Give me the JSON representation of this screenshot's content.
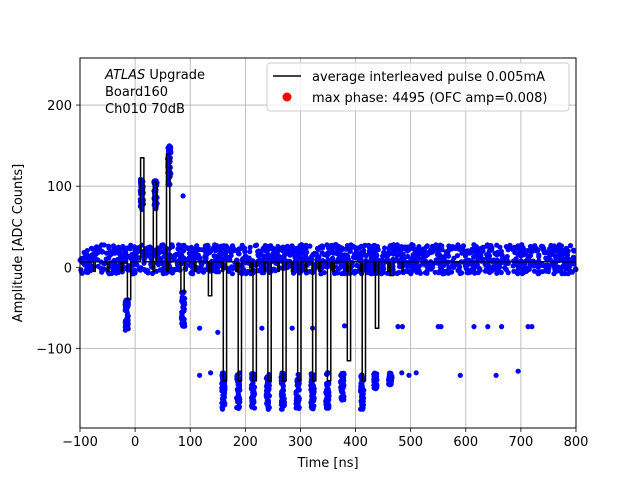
{
  "chart_data": {
    "type": "scatter",
    "xlabel": "Time [ns]",
    "ylabel": "Amplitude [ADC Counts]",
    "xlim": [
      -100,
      800
    ],
    "ylim": [
      -198,
      258
    ],
    "xticks": [
      -100,
      0,
      100,
      200,
      300,
      400,
      500,
      600,
      700,
      800
    ],
    "xtick_labels": [
      "−100",
      "0",
      "100",
      "200",
      "300",
      "400",
      "500",
      "600",
      "700",
      "800"
    ],
    "yticks": [
      -100,
      0,
      100,
      200
    ],
    "ytick_labels": [
      "−100",
      "0",
      "100",
      "200"
    ],
    "grid": true,
    "legend_placement": "top-right",
    "annotation": {
      "line1_italic": "ATLAS",
      "line1_rest": " Upgrade",
      "line2": " Board160",
      "line3": " Ch010 70dB"
    },
    "series": [
      {
        "name": "average interleaved pulse 0.005mA",
        "kind": "line",
        "color": "#000000",
        "pulses": [
          {
            "t0": -14,
            "t1": -8,
            "v": -40
          },
          {
            "t0": 10,
            "t1": 16,
            "v": 135
          },
          {
            "t0": 33,
            "t1": 39,
            "v": 105
          },
          {
            "t0": 57,
            "t1": 63,
            "v": 140
          },
          {
            "t0": 83,
            "t1": 89,
            "v": -30
          },
          {
            "t0": 133,
            "t1": 139,
            "v": -35
          },
          {
            "t0": 160,
            "t1": 166,
            "v": -140
          },
          {
            "t0": 187,
            "t1": 193,
            "v": -140
          },
          {
            "t0": 214,
            "t1": 220,
            "v": -140
          },
          {
            "t0": 241,
            "t1": 247,
            "v": -140
          },
          {
            "t0": 268,
            "t1": 274,
            "v": -140
          },
          {
            "t0": 295,
            "t1": 301,
            "v": -140
          },
          {
            "t0": 322,
            "t1": 328,
            "v": -140
          },
          {
            "t0": 349,
            "t1": 355,
            "v": -140
          },
          {
            "t0": 385,
            "t1": 391,
            "v": -115
          },
          {
            "t0": 412,
            "t1": 418,
            "v": -140
          },
          {
            "t0": 436,
            "t1": 442,
            "v": -75
          },
          {
            "t0": 463,
            "t1": 469,
            "v": -10
          }
        ],
        "dips": [
          -74,
          -49,
          -24,
          34,
          59,
          109,
          134,
          159,
          184,
          210,
          235,
          260,
          285,
          310,
          335,
          360,
          385,
          410,
          435,
          460,
          485
        ],
        "baseline": 7
      },
      {
        "name": "max phase: 4495 (OFC amp=0.008)",
        "kind": "scatter",
        "color": "#ff0000"
      }
    ],
    "samples": {
      "color": "#0000ff",
      "band_min": -8,
      "band_max": 28,
      "clusters": [
        {
          "x": -15,
          "y0": -78,
          "y1": -40
        },
        {
          "x": 12,
          "y0": 70,
          "y1": 110
        },
        {
          "x": 37,
          "y0": 72,
          "y1": 108
        },
        {
          "x": 62,
          "y0": 100,
          "y1": 150
        },
        {
          "x": 87,
          "y0": -75,
          "y1": -30
        },
        {
          "x": 160,
          "y0": -175,
          "y1": -130
        },
        {
          "x": 187,
          "y0": -175,
          "y1": -130
        },
        {
          "x": 214,
          "y0": -175,
          "y1": -130
        },
        {
          "x": 241,
          "y0": -175,
          "y1": -130
        },
        {
          "x": 268,
          "y0": -175,
          "y1": -130
        },
        {
          "x": 295,
          "y0": -175,
          "y1": -130
        },
        {
          "x": 322,
          "y0": -175,
          "y1": -130
        },
        {
          "x": 349,
          "y0": -175,
          "y1": -130
        },
        {
          "x": 376,
          "y0": -165,
          "y1": -130
        },
        {
          "x": 412,
          "y0": -175,
          "y1": -130
        },
        {
          "x": 436,
          "y0": -150,
          "y1": -130
        },
        {
          "x": 463,
          "y0": -145,
          "y1": -130
        }
      ],
      "outliers": [
        {
          "x": 87,
          "y": 88
        },
        {
          "x": 117,
          "y": -75
        },
        {
          "x": 117,
          "y": -133
        },
        {
          "x": 137,
          "y": -130
        },
        {
          "x": 150,
          "y": -80
        },
        {
          "x": 230,
          "y": -75
        },
        {
          "x": 285,
          "y": -75
        },
        {
          "x": 322,
          "y": -75
        },
        {
          "x": 380,
          "y": -72
        },
        {
          "x": 477,
          "y": -73
        },
        {
          "x": 485,
          "y": -73
        },
        {
          "x": 484,
          "y": -130
        },
        {
          "x": 497,
          "y": -133
        },
        {
          "x": 510,
          "y": -130
        },
        {
          "x": 550,
          "y": -73
        },
        {
          "x": 555,
          "y": -73
        },
        {
          "x": 590,
          "y": -133
        },
        {
          "x": 615,
          "y": -73
        },
        {
          "x": 640,
          "y": -73
        },
        {
          "x": 655,
          "y": -133
        },
        {
          "x": 665,
          "y": -73
        },
        {
          "x": 695,
          "y": -128
        },
        {
          "x": 713,
          "y": -73
        },
        {
          "x": 720,
          "y": -73
        }
      ]
    }
  }
}
